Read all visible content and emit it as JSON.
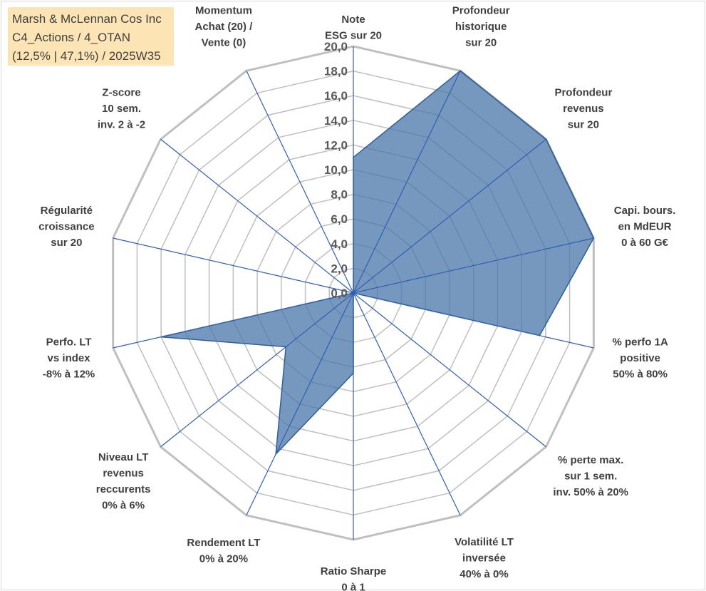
{
  "info_box": {
    "line1": "Marsh & McLennan Cos Inc",
    "line2": "C4_Actions / 4_OTAN",
    "line3": "(12,5% | 47,1%) / 2025W35"
  },
  "chart_data": {
    "type": "radar",
    "title": "",
    "range": [
      0,
      20
    ],
    "ticks": [
      "0,0",
      "2,0",
      "4,0",
      "6,0",
      "8,0",
      "10,0",
      "12,0",
      "14,0",
      "16,0",
      "18,0",
      "20,0"
    ],
    "axes": [
      [
        "Note",
        "ESG sur 20"
      ],
      [
        "Profondeur",
        "historique",
        "sur 20"
      ],
      [
        "Profondeur",
        "revenus",
        "sur 20"
      ],
      [
        "Capi. bours.",
        "en MdEUR",
        "0 à 60 G€"
      ],
      [
        "% perfo 1A",
        "positive",
        "50% à 80%"
      ],
      [
        "% perte max.",
        "sur 1 sem.",
        "inv. 50% à 20%"
      ],
      [
        "Volatilité LT",
        "inversée",
        "40% à 0%"
      ],
      [
        "Ratio Sharpe",
        "0 à 1"
      ],
      [
        "Rendement LT",
        "0% à 20%"
      ],
      [
        "Niveau LT",
        "revenus",
        "reccurents",
        "0% à 6%"
      ],
      [
        "Perfo. LT",
        "vs index",
        "-8% à 12%"
      ],
      [
        "Régularité",
        "croissance",
        "sur 20"
      ],
      [
        "Z-score",
        "10 sem.",
        "inv. 2 à -2"
      ],
      [
        "Momentum",
        "Achat (20) /",
        "Vente (0)"
      ]
    ],
    "series": [
      {
        "values": [
          11.0,
          20.0,
          20.0,
          20.0,
          15.5,
          0.0,
          0.0,
          6.5,
          14.5,
          7.0,
          16.0,
          0.0,
          0.0,
          0.0
        ]
      }
    ],
    "colors": {
      "fill": "#4a76a8",
      "fill_opacity": 0.75,
      "stroke": "#2e5f97",
      "grid": "#bfbfbf",
      "spoke": "#2f5fb3"
    },
    "grid": true,
    "legend": "none"
  }
}
